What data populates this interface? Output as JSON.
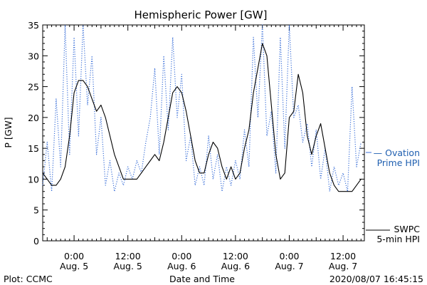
{
  "colors": {
    "swpc": "#000000",
    "ovation": "#3a6fd8",
    "axis": "#000000",
    "ovation_text": "#1f5fb0"
  },
  "footer": {
    "left": "Plot: CCMC",
    "center": "Date and Time",
    "right": "2020/08/07 16:45:15"
  },
  "legend": {
    "ovation": {
      "line1": "— Ovation",
      "line2": "Prime HPI"
    },
    "swpc": {
      "line1": "SWPC",
      "line2": "5-min HPI"
    }
  },
  "chart_data": {
    "type": "line",
    "title": "Hemispheric Power [GW]",
    "xlabel": "Date and Time",
    "ylabel": "P [GW]",
    "ylim": [
      0,
      35
    ],
    "xlim": [
      "2020-08-04 17:00",
      "2020-08-07 16:45"
    ],
    "yticks": [
      0,
      5,
      10,
      15,
      20,
      25,
      30,
      35
    ],
    "xticks": [
      {
        "time": "2020-08-05 00:00",
        "line1": "0:00",
        "line2": "Aug. 5"
      },
      {
        "time": "2020-08-05 12:00",
        "line1": "12:00",
        "line2": "Aug. 5"
      },
      {
        "time": "2020-08-06 00:00",
        "line1": "0:00",
        "line2": "Aug. 6"
      },
      {
        "time": "2020-08-06 12:00",
        "line1": "12:00",
        "line2": "Aug. 6"
      },
      {
        "time": "2020-08-07 00:00",
        "line1": "0:00",
        "line2": "Aug. 7"
      },
      {
        "time": "2020-08-07 12:00",
        "line1": "12:00",
        "line2": "Aug. 7"
      }
    ],
    "grid": false,
    "series": [
      {
        "name": "SWPC 5-min HPI",
        "style": "solid",
        "points": [
          [
            "2020-08-04 17:00",
            11
          ],
          [
            "2020-08-04 18:00",
            10
          ],
          [
            "2020-08-04 19:00",
            9
          ],
          [
            "2020-08-04 20:00",
            9
          ],
          [
            "2020-08-04 21:00",
            10
          ],
          [
            "2020-08-04 22:00",
            12
          ],
          [
            "2020-08-04 23:00",
            17
          ],
          [
            "2020-08-05 00:00",
            24
          ],
          [
            "2020-08-05 01:00",
            26
          ],
          [
            "2020-08-05 02:00",
            26
          ],
          [
            "2020-08-05 03:00",
            25
          ],
          [
            "2020-08-05 04:00",
            23
          ],
          [
            "2020-08-05 05:00",
            21
          ],
          [
            "2020-08-05 06:00",
            22
          ],
          [
            "2020-08-05 07:00",
            20
          ],
          [
            "2020-08-05 08:00",
            17
          ],
          [
            "2020-08-05 09:00",
            14
          ],
          [
            "2020-08-05 10:00",
            12
          ],
          [
            "2020-08-05 11:00",
            10
          ],
          [
            "2020-08-05 12:00",
            10
          ],
          [
            "2020-08-05 13:00",
            10
          ],
          [
            "2020-08-05 14:00",
            10
          ],
          [
            "2020-08-05 15:00",
            11
          ],
          [
            "2020-08-05 16:00",
            12
          ],
          [
            "2020-08-05 17:00",
            13
          ],
          [
            "2020-08-05 18:00",
            14
          ],
          [
            "2020-08-05 19:00",
            13
          ],
          [
            "2020-08-05 20:00",
            16
          ],
          [
            "2020-08-05 21:00",
            20
          ],
          [
            "2020-08-05 22:00",
            24
          ],
          [
            "2020-08-05 23:00",
            25
          ],
          [
            "2020-08-06 00:00",
            24
          ],
          [
            "2020-08-06 01:00",
            21
          ],
          [
            "2020-08-06 02:00",
            17
          ],
          [
            "2020-08-06 03:00",
            13
          ],
          [
            "2020-08-06 04:00",
            11
          ],
          [
            "2020-08-06 05:00",
            11
          ],
          [
            "2020-08-06 06:00",
            14
          ],
          [
            "2020-08-06 07:00",
            16
          ],
          [
            "2020-08-06 08:00",
            15
          ],
          [
            "2020-08-06 09:00",
            12
          ],
          [
            "2020-08-06 10:00",
            10
          ],
          [
            "2020-08-06 11:00",
            12
          ],
          [
            "2020-08-06 12:00",
            10
          ],
          [
            "2020-08-06 13:00",
            11
          ],
          [
            "2020-08-06 14:00",
            15
          ],
          [
            "2020-08-06 15:00",
            18
          ],
          [
            "2020-08-06 16:00",
            24
          ],
          [
            "2020-08-06 17:00",
            28
          ],
          [
            "2020-08-06 18:00",
            32
          ],
          [
            "2020-08-06 19:00",
            30
          ],
          [
            "2020-08-06 20:00",
            22
          ],
          [
            "2020-08-06 21:00",
            14
          ],
          [
            "2020-08-06 22:00",
            10
          ],
          [
            "2020-08-06 23:00",
            11
          ],
          [
            "2020-08-07 00:00",
            20
          ],
          [
            "2020-08-07 01:00",
            21
          ],
          [
            "2020-08-07 02:00",
            27
          ],
          [
            "2020-08-07 03:00",
            24
          ],
          [
            "2020-08-07 04:00",
            17
          ],
          [
            "2020-08-07 05:00",
            14
          ],
          [
            "2020-08-07 06:00",
            17
          ],
          [
            "2020-08-07 07:00",
            19
          ],
          [
            "2020-08-07 08:00",
            15
          ],
          [
            "2020-08-07 09:00",
            11
          ],
          [
            "2020-08-07 10:00",
            9
          ],
          [
            "2020-08-07 11:00",
            8
          ],
          [
            "2020-08-07 12:00",
            8
          ],
          [
            "2020-08-07 13:00",
            8
          ],
          [
            "2020-08-07 14:00",
            8
          ],
          [
            "2020-08-07 15:00",
            9
          ],
          [
            "2020-08-07 16:00",
            10
          ]
        ]
      },
      {
        "name": "Ovation Prime HPI",
        "style": "dotted",
        "points": [
          [
            "2020-08-04 17:00",
            9
          ],
          [
            "2020-08-04 18:00",
            16
          ],
          [
            "2020-08-04 19:00",
            8
          ],
          [
            "2020-08-04 20:00",
            23
          ],
          [
            "2020-08-04 21:00",
            12
          ],
          [
            "2020-08-04 22:00",
            35
          ],
          [
            "2020-08-04 23:00",
            14
          ],
          [
            "2020-08-05 00:00",
            33
          ],
          [
            "2020-08-05 01:00",
            17
          ],
          [
            "2020-08-05 02:00",
            35
          ],
          [
            "2020-08-05 03:00",
            22
          ],
          [
            "2020-08-05 04:00",
            30
          ],
          [
            "2020-08-05 05:00",
            14
          ],
          [
            "2020-08-05 06:00",
            20
          ],
          [
            "2020-08-05 07:00",
            9
          ],
          [
            "2020-08-05 08:00",
            13
          ],
          [
            "2020-08-05 09:00",
            8
          ],
          [
            "2020-08-05 10:00",
            11
          ],
          [
            "2020-08-05 11:00",
            9
          ],
          [
            "2020-08-05 12:00",
            12
          ],
          [
            "2020-08-05 13:00",
            10
          ],
          [
            "2020-08-05 14:00",
            13
          ],
          [
            "2020-08-05 15:00",
            11
          ],
          [
            "2020-08-05 16:00",
            16
          ],
          [
            "2020-08-05 17:00",
            20
          ],
          [
            "2020-08-05 18:00",
            28
          ],
          [
            "2020-08-05 19:00",
            14
          ],
          [
            "2020-08-05 20:00",
            30
          ],
          [
            "2020-08-05 21:00",
            18
          ],
          [
            "2020-08-05 22:00",
            33
          ],
          [
            "2020-08-05 23:00",
            20
          ],
          [
            "2020-08-06 00:00",
            27
          ],
          [
            "2020-08-06 01:00",
            13
          ],
          [
            "2020-08-06 02:00",
            17
          ],
          [
            "2020-08-06 03:00",
            9
          ],
          [
            "2020-08-06 04:00",
            12
          ],
          [
            "2020-08-06 05:00",
            9
          ],
          [
            "2020-08-06 06:00",
            17
          ],
          [
            "2020-08-06 07:00",
            10
          ],
          [
            "2020-08-06 08:00",
            14
          ],
          [
            "2020-08-06 09:00",
            8
          ],
          [
            "2020-08-06 10:00",
            12
          ],
          [
            "2020-08-06 11:00",
            9
          ],
          [
            "2020-08-06 12:00",
            13
          ],
          [
            "2020-08-06 13:00",
            10
          ],
          [
            "2020-08-06 14:00",
            18
          ],
          [
            "2020-08-06 15:00",
            12
          ],
          [
            "2020-08-06 16:00",
            33
          ],
          [
            "2020-08-06 17:00",
            20
          ],
          [
            "2020-08-06 18:00",
            35
          ],
          [
            "2020-08-06 19:00",
            17
          ],
          [
            "2020-08-06 20:00",
            21
          ],
          [
            "2020-08-06 21:00",
            11
          ],
          [
            "2020-08-06 22:00",
            33
          ],
          [
            "2020-08-06 23:00",
            15
          ],
          [
            "2020-08-07 00:00",
            35
          ],
          [
            "2020-08-07 01:00",
            20
          ],
          [
            "2020-08-07 02:00",
            22
          ],
          [
            "2020-08-07 03:00",
            16
          ],
          [
            "2020-08-07 04:00",
            19
          ],
          [
            "2020-08-07 05:00",
            12
          ],
          [
            "2020-08-07 06:00",
            18
          ],
          [
            "2020-08-07 07:00",
            10
          ],
          [
            "2020-08-07 08:00",
            15
          ],
          [
            "2020-08-07 09:00",
            8
          ],
          [
            "2020-08-07 10:00",
            12
          ],
          [
            "2020-08-07 11:00",
            9
          ],
          [
            "2020-08-07 12:00",
            11
          ],
          [
            "2020-08-07 13:00",
            8
          ],
          [
            "2020-08-07 14:00",
            25
          ],
          [
            "2020-08-07 15:00",
            12
          ],
          [
            "2020-08-07 16:00",
            16
          ]
        ]
      }
    ]
  }
}
